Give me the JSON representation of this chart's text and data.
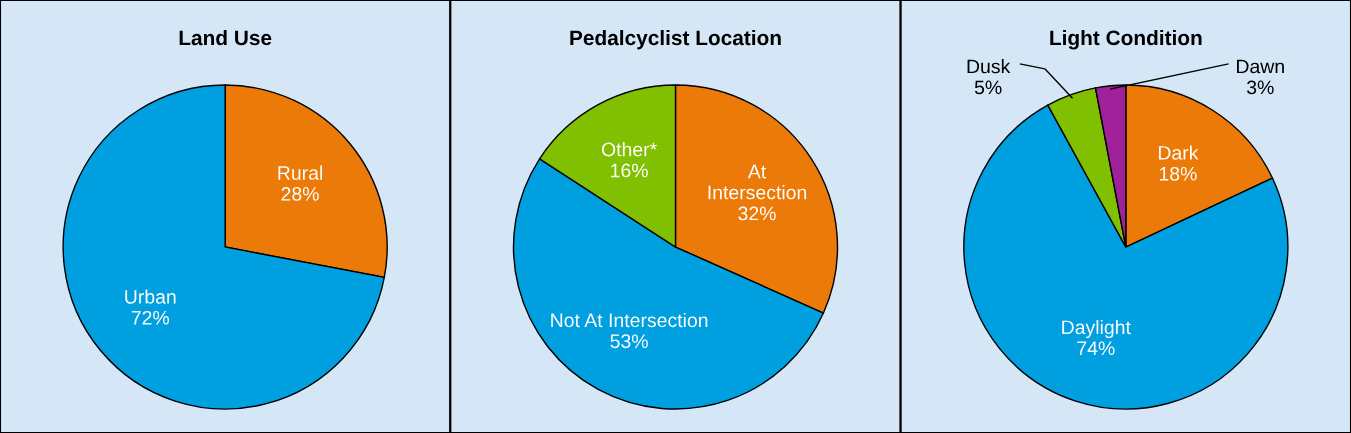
{
  "chart_data": [
    {
      "type": "pie",
      "title": "Land Use",
      "categories": [
        "Rural",
        "Urban"
      ],
      "values": [
        28,
        72
      ],
      "value_labels": [
        "28%",
        "72%"
      ],
      "colors": [
        "#ec7a08",
        "#009fe0"
      ]
    },
    {
      "type": "pie",
      "title": "Pedalcyclist Location",
      "categories": [
        "At\nIntersection",
        "Not At Intersection",
        "Other*"
      ],
      "values": [
        32,
        53,
        16
      ],
      "value_labels": [
        "32%",
        "53%",
        "16%"
      ],
      "colors": [
        "#ec7a08",
        "#009fe0",
        "#80c000"
      ]
    },
    {
      "type": "pie",
      "title": "Light Condition",
      "categories": [
        "Dark",
        "Daylight",
        "Dusk",
        "Dawn"
      ],
      "values": [
        18,
        74,
        5,
        3
      ],
      "value_labels": [
        "18%",
        "74%",
        "5%",
        "3%"
      ],
      "colors": [
        "#ec7a08",
        "#009fe0",
        "#80c000",
        "#a0219a"
      ]
    }
  ]
}
